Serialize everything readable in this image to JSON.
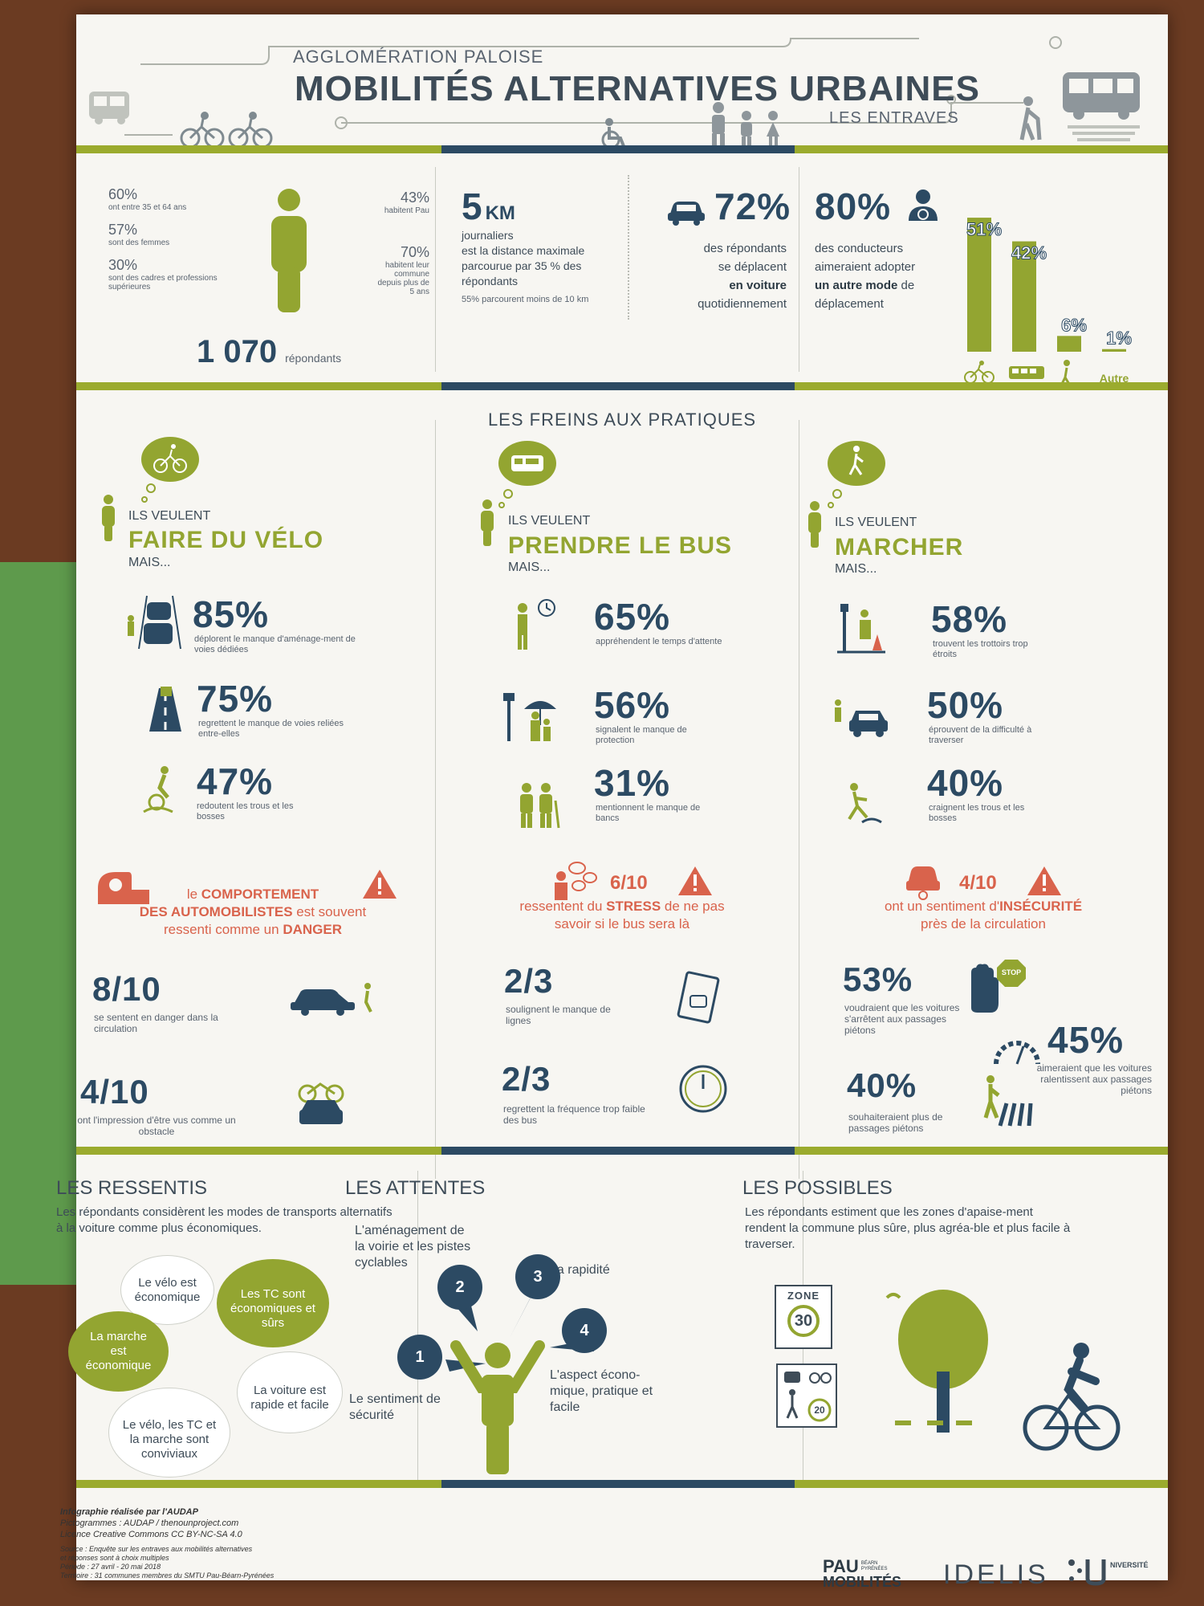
{
  "header": {
    "subtitle": "AGGLOMÉRATION PALOISE",
    "title": "MOBILITÉS ALTERNATIVES URBAINES",
    "tagline": "LES ENTRAVES"
  },
  "profile": {
    "s1_pct": "60%",
    "s1_txt": "ont entre 35 et 64 ans",
    "s2_pct": "57%",
    "s2_txt": "sont des femmes",
    "s3_pct": "30%",
    "s3_txt": "sont des cadres et professions supérieures",
    "s4_pct": "43%",
    "s4_txt": "habitent Pau",
    "s5_pct": "70%",
    "s5_txt": "habitent leur commune depuis plus de 5 ans",
    "count": "1 070",
    "count_label": "répondants"
  },
  "distance": {
    "value": "5",
    "unit": "KM",
    "line1": "journaliers",
    "line2": "est la distance maximale",
    "line3": "parcourue par 35 % des",
    "line4": "répondants",
    "note": "55% parcourent moins de 10 km"
  },
  "car": {
    "pct": "72%",
    "l1": "des répondants",
    "l2": "se déplacent",
    "l3": "en voiture",
    "l4": "quotidiennement"
  },
  "drivers": {
    "pct": "80%",
    "l1": "des conducteurs",
    "l2": "aimeraient adopter",
    "l3": "un autre mode",
    "l3b": " de",
    "l4": "déplacement"
  },
  "chart_data": {
    "type": "bar",
    "categories": [
      "vélo",
      "bus",
      "marche",
      "Autre"
    ],
    "values": [
      51,
      42,
      6,
      1
    ],
    "labels": [
      "51%",
      "42%",
      "6%",
      "1%"
    ],
    "other_label": "Autre",
    "ylim": [
      0,
      55
    ],
    "color": "#93a531"
  },
  "freins": {
    "title": "LES FREINS AUX PRATIQUES",
    "velo": {
      "want": "ILS VEULENT",
      "what": "FAIRE DU VÉLO",
      "but": "MAIS...",
      "p1": "85%",
      "t1": "déplorent le manque d'aménage-ment de voies dédiées",
      "p2": "75%",
      "t2": "regrettent le manque de voies reliées entre-elles",
      "p3": "47%",
      "t3": "redoutent les trous et les bosses",
      "alert_a": "le ",
      "alert_b": "COMPORTEMENT",
      "alert_c": "DES AUTOMOBILISTES",
      "alert_d": " est souvent",
      "alert_e": "ressenti comme un ",
      "alert_f": "DANGER",
      "f1": "8/10",
      "ft1": "se sentent en danger dans la circulation",
      "f2": "4/10",
      "ft2": "ont l'impression d'être vus comme un obstacle"
    },
    "bus": {
      "want": "ILS VEULENT",
      "what": "PRENDRE LE BUS",
      "but": "MAIS...",
      "p1": "65%",
      "t1": "appréhendent le temps d'attente",
      "p2": "56%",
      "t2": "signalent le manque de protection",
      "p3": "31%",
      "t3": "mentionnent le manque de bancs",
      "alert_num": "6/10",
      "alert_a": "ressentent du ",
      "alert_b": "STRESS",
      "alert_c": " de ne pas",
      "alert_d": "savoir si le bus sera là",
      "f1": "2/3",
      "ft1": "soulignent le manque de lignes",
      "f2": "2/3",
      "ft2": "regrettent la fréquence trop faible des bus"
    },
    "marche": {
      "want": "ILS VEULENT",
      "what": "MARCHER",
      "but": "MAIS...",
      "p1": "58%",
      "t1": "trouvent les trottoirs trop étroits",
      "p2": "50%",
      "t2": "éprouvent de la difficulté à traverser",
      "p3": "40%",
      "t3": "craignent les trous et les bosses",
      "alert_num": "4/10",
      "alert_a": "ont un sentiment d'",
      "alert_b": "INSÉCURITÉ",
      "alert_c": "près de la circulation",
      "f1": "53%",
      "ft1": "voudraient que les voitures s'arrêtent aux passages piétons",
      "f2": "45%",
      "ft2": "aimeraient que les voitures ralentissent aux passages piétons",
      "f3": "40%",
      "ft3": "souhaiteraient plus de passages piétons",
      "stop": "STOP"
    }
  },
  "ressentis": {
    "title": "LES RESSENTIS",
    "intro": "Les répondants considèrent les modes de transports alternatifs à la voiture comme plus économiques.",
    "b1": "Le vélo est économique",
    "b2": "Les TC sont économiques et sûrs",
    "b3": "La marche est économique",
    "b4": "La voiture est rapide et facile",
    "b5": "Le vélo, les TC et la marche sont conviviaux"
  },
  "attentes": {
    "title": "LES ATTENTES",
    "a1": "Le sentiment de sécurité",
    "a2": "L'aménagement de la voirie et les pistes cyclables",
    "a3": "La rapidité",
    "a4": "L'aspect écono-mique, pratique et facile",
    "n1": "1",
    "n2": "2",
    "n3": "3",
    "n4": "4"
  },
  "possibles": {
    "title": "LES POSSIBLES",
    "intro": "Les répondants estiment que les zones d'apaise-ment rendent la commune plus sûre, plus agréa-ble et plus facile à traverser.",
    "zone": "ZONE",
    "zone_num": "30",
    "sign_num": "20"
  },
  "footer": {
    "credit": "Infographie réalisée par l'AUDAP",
    "picto": "Pictogrammes : AUDAP / thenounproject.com",
    "licence": "Licence Creative Commons CC BY-NC-SA 4.0",
    "source1": "Source : Enquête sur les entraves aux mobilités alternatives",
    "source2": "et réponses sont à choix multiples",
    "source3": "Période : 27 avril - 20 mai 2018",
    "source4": "Territoire : 31 communes membres du SMTU Pau-Béarn-Pyrénées",
    "logo1a": "PAU",
    "logo1b": "MOBILITÉS",
    "logo1c": "BÉARN PYRÉNÉES",
    "logo2": "IDELIS",
    "logo3": "NIVERSITÉ"
  }
}
